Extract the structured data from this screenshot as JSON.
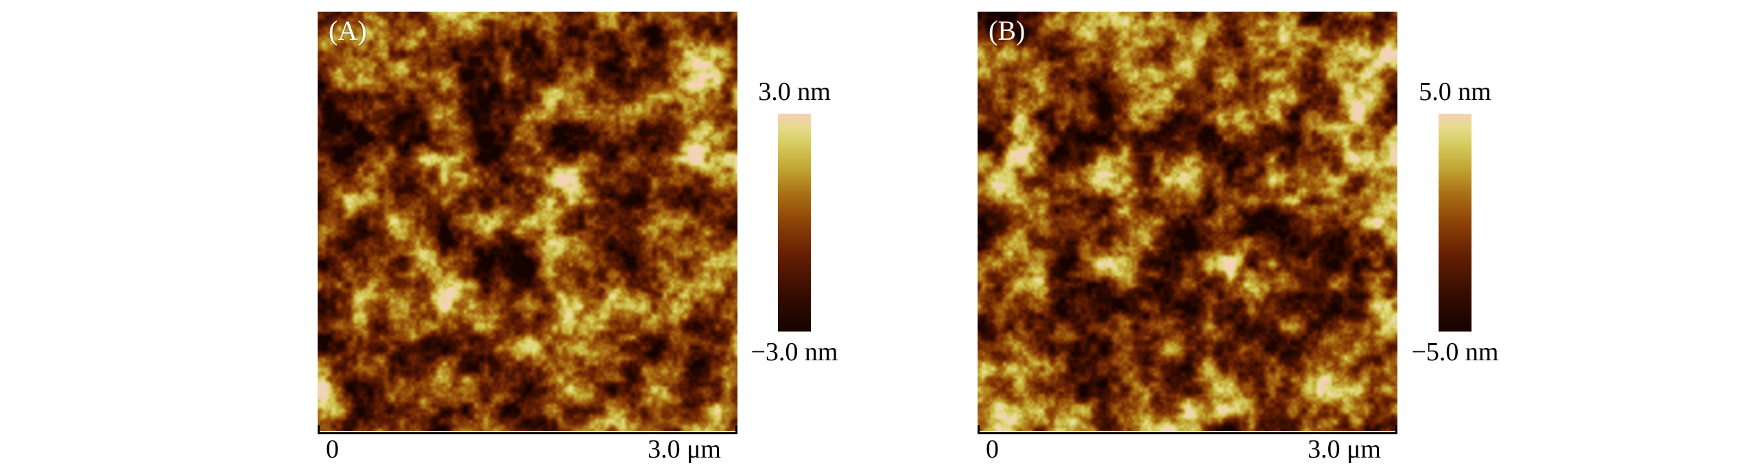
{
  "figure": {
    "background": "#ffffff",
    "panels": [
      {
        "label": "(A)",
        "colorbar_max": "3.0 nm",
        "colorbar_min": "−3.0 nm",
        "scale_start": "0",
        "scale_end": "3.0 μm"
      },
      {
        "label": "(B)",
        "colorbar_max": "5.0 nm",
        "colorbar_min": "−5.0 nm",
        "scale_start": "0",
        "scale_end": "3.0 μm"
      }
    ],
    "colormap": [
      {
        "t": 0.0,
        "c": "#150300"
      },
      {
        "t": 0.18,
        "c": "#380d01"
      },
      {
        "t": 0.35,
        "c": "#641f03"
      },
      {
        "t": 0.5,
        "c": "#8d4207"
      },
      {
        "t": 0.63,
        "c": "#a96f14"
      },
      {
        "t": 0.75,
        "c": "#c2a634"
      },
      {
        "t": 0.86,
        "c": "#d6cb5f"
      },
      {
        "t": 0.93,
        "c": "#e4da88"
      },
      {
        "t": 1.0,
        "c": "#f4d2b6"
      }
    ]
  }
}
